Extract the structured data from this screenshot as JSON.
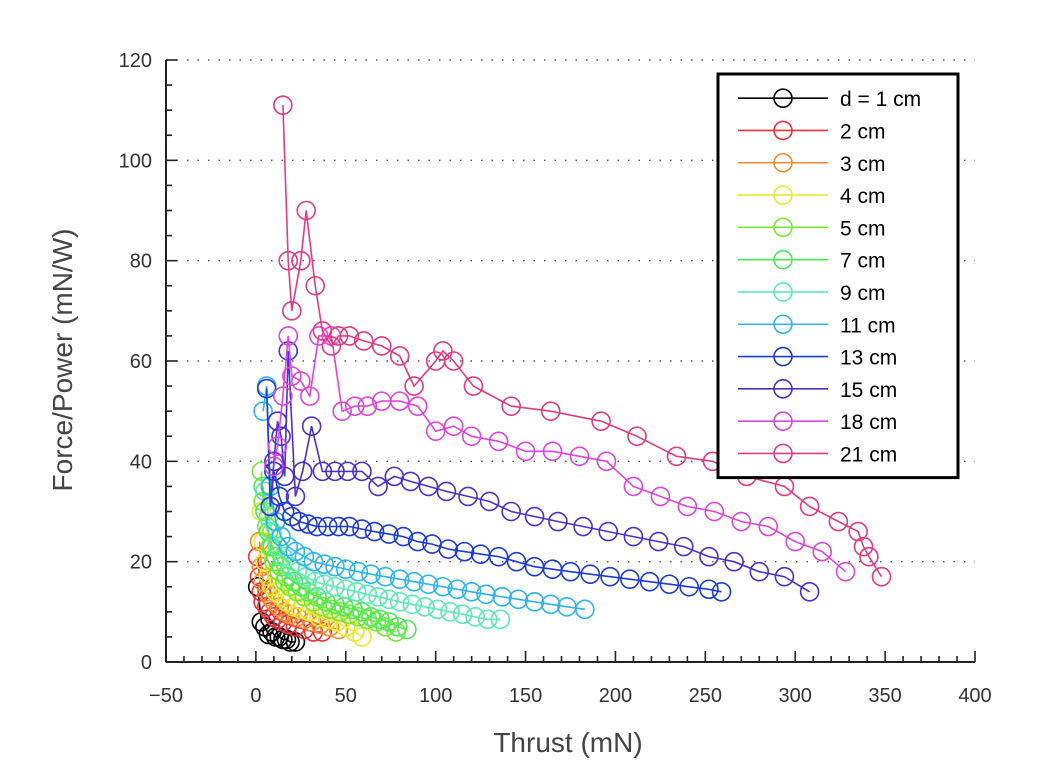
{
  "chart_data": {
    "type": "scatter",
    "xlabel": "Thrust (mN)",
    "ylabel": "Force/Power (mN/W)",
    "xlim": [
      -50,
      400
    ],
    "ylim": [
      0,
      120
    ],
    "xticks": [
      "−50",
      "0",
      "50",
      "100",
      "150",
      "200",
      "250",
      "300",
      "350",
      "400"
    ],
    "yticks": [
      "0",
      "20",
      "40",
      "60",
      "80",
      "100",
      "120"
    ],
    "grid": "horizontal dotted",
    "legend_position": "top-right",
    "series": [
      {
        "name": "d = 1 cm",
        "color": "#000000",
        "x": [
          1,
          3,
          5,
          7,
          9,
          11,
          13,
          15,
          17,
          19,
          22
        ],
        "y": [
          15,
          8,
          7,
          5.5,
          6,
          5,
          5,
          4.5,
          4.5,
          4,
          4
        ]
      },
      {
        "name": "2 cm",
        "color": "#e8323c",
        "x": [
          1,
          2,
          3,
          4,
          6,
          8,
          10,
          12,
          15,
          18,
          22,
          27,
          32,
          37
        ],
        "y": [
          21,
          17,
          14,
          12,
          11,
          10,
          9,
          8.5,
          8,
          7.5,
          7,
          6.5,
          6,
          6
        ]
      },
      {
        "name": "3 cm",
        "color": "#f28a2e",
        "x": [
          2,
          3,
          4,
          6,
          8,
          10,
          13,
          16,
          19,
          23,
          27,
          31,
          36,
          41,
          46
        ],
        "y": [
          24,
          19,
          16,
          14,
          13,
          12,
          11,
          10,
          9.5,
          9,
          8.5,
          8,
          7.5,
          7,
          6.5
        ]
      },
      {
        "name": "4 cm",
        "color": "#e8e832",
        "x": [
          3,
          4,
          5,
          7,
          9,
          11,
          14,
          17,
          21,
          25,
          30,
          35,
          40,
          45,
          50,
          55,
          59
        ],
        "y": [
          30,
          24,
          20,
          17,
          15,
          14,
          13,
          12,
          11,
          10.5,
          10,
          9,
          8.5,
          8,
          7,
          6,
          5
        ]
      },
      {
        "name": "5 cm",
        "color": "#7ae832",
        "x": [
          3,
          4,
          6,
          8,
          10,
          13,
          16,
          19,
          23,
          27,
          32,
          37,
          42,
          47,
          52,
          57,
          62,
          67,
          72,
          78
        ],
        "y": [
          38,
          32,
          27,
          23,
          20,
          18,
          16,
          15,
          14,
          13,
          12,
          11,
          10.5,
          10,
          9.5,
          9,
          8.5,
          8,
          7,
          6
        ]
      },
      {
        "name": "7 cm",
        "color": "#4fe85a",
        "x": [
          4,
          5,
          7,
          9,
          11,
          14,
          17,
          21,
          25,
          29,
          34,
          39,
          44,
          49,
          54,
          59,
          64,
          69,
          74,
          79,
          84
        ],
        "y": [
          35,
          30,
          26,
          23,
          21,
          19,
          17,
          16,
          15,
          14,
          13,
          12,
          11.5,
          11,
          10.5,
          10,
          9,
          8.5,
          8,
          7,
          6.5
        ]
      },
      {
        "name": "9 cm",
        "color": "#5fe8b4",
        "x": [
          5,
          7,
          9,
          12,
          15,
          19,
          23,
          28,
          33,
          38,
          44,
          50,
          56,
          62,
          68,
          74,
          80,
          87,
          94,
          101,
          108,
          115,
          122,
          129,
          136
        ],
        "y": [
          34,
          29,
          26,
          23,
          21,
          19,
          18,
          17,
          16,
          15.5,
          15,
          14.5,
          14,
          13.5,
          13,
          12.5,
          12,
          11.5,
          11,
          10.5,
          10,
          9.5,
          9,
          8.5,
          8.5
        ]
      },
      {
        "name": "11 cm",
        "color": "#2eb4f0",
        "x": [
          4,
          6,
          8,
          11,
          14,
          18,
          22,
          27,
          32,
          38,
          44,
          50,
          57,
          64,
          72,
          80,
          88,
          96,
          104,
          112,
          120,
          128,
          137,
          146,
          155,
          164,
          173,
          183
        ],
        "y": [
          50,
          55,
          35,
          28,
          25,
          23,
          22,
          21,
          20,
          19.5,
          19,
          18.5,
          18,
          17.5,
          17,
          16.5,
          16,
          15.5,
          15,
          14.5,
          14,
          13.5,
          13,
          12.5,
          12,
          11.5,
          11,
          10.5
        ]
      },
      {
        "name": "13 cm",
        "color": "#1e3cd2",
        "x": [
          6,
          8,
          10,
          13,
          16,
          20,
          24,
          29,
          34,
          40,
          46,
          52,
          59,
          66,
          74,
          82,
          90,
          98,
          107,
          116,
          125,
          135,
          145,
          155,
          165,
          175,
          186,
          197,
          208,
          219,
          230,
          241,
          252,
          259
        ],
        "y": [
          54.5,
          31,
          38,
          33,
          30,
          29,
          28,
          27.5,
          27,
          27,
          27,
          27,
          26.5,
          26,
          25.5,
          25,
          24,
          23.5,
          22.5,
          22,
          21.5,
          21,
          20,
          19,
          18.5,
          18,
          17.5,
          17,
          16.5,
          16,
          15.5,
          15,
          14.5,
          14
        ]
      },
      {
        "name": "15 cm",
        "color": "#4a32c8",
        "x": [
          8,
          10,
          12,
          14,
          16,
          18,
          22,
          26,
          31,
          37,
          44,
          51,
          59,
          68,
          77,
          86,
          96,
          106,
          118,
          130,
          142,
          155,
          168,
          182,
          196,
          210,
          224,
          238,
          252,
          266,
          280,
          294,
          308
        ],
        "y": [
          31,
          40,
          48,
          45,
          37,
          62,
          33,
          38,
          47,
          38,
          38,
          38,
          38,
          35,
          37,
          36,
          35,
          34,
          33,
          32,
          30,
          29,
          28,
          27,
          26,
          25,
          24,
          23,
          21,
          20,
          18,
          17,
          14
        ]
      },
      {
        "name": "18 cm",
        "color": "#dc46dc",
        "x": [
          10,
          12,
          15,
          18,
          20,
          25,
          30,
          35,
          42,
          48,
          55,
          62,
          70,
          80,
          90,
          100,
          110,
          120,
          135,
          150,
          165,
          180,
          195,
          210,
          225,
          240,
          255,
          270,
          285,
          300,
          315,
          328
        ],
        "y": [
          39,
          43,
          53,
          65,
          57,
          56,
          53,
          65,
          65,
          50,
          51,
          51,
          52,
          52,
          51,
          46,
          47,
          45,
          44,
          42,
          42,
          41,
          40,
          35,
          33,
          31,
          30,
          28,
          27,
          24,
          22,
          18
        ]
      },
      {
        "name": "21 cm",
        "color": "#e03c82",
        "x": [
          15,
          18,
          20,
          25,
          28,
          33,
          37,
          42,
          46,
          52,
          60,
          70,
          80,
          88,
          100,
          104,
          110,
          121,
          142,
          164,
          192,
          212,
          234,
          254,
          273,
          294,
          308,
          324,
          335,
          338,
          341,
          348
        ],
        "y": [
          111,
          80,
          70,
          80,
          90,
          75,
          66,
          63,
          65,
          65,
          64,
          63,
          61,
          55,
          60,
          62,
          60,
          55,
          51,
          50,
          48,
          45,
          41,
          40,
          37,
          35,
          31,
          28,
          26,
          23,
          21,
          17
        ]
      }
    ]
  }
}
